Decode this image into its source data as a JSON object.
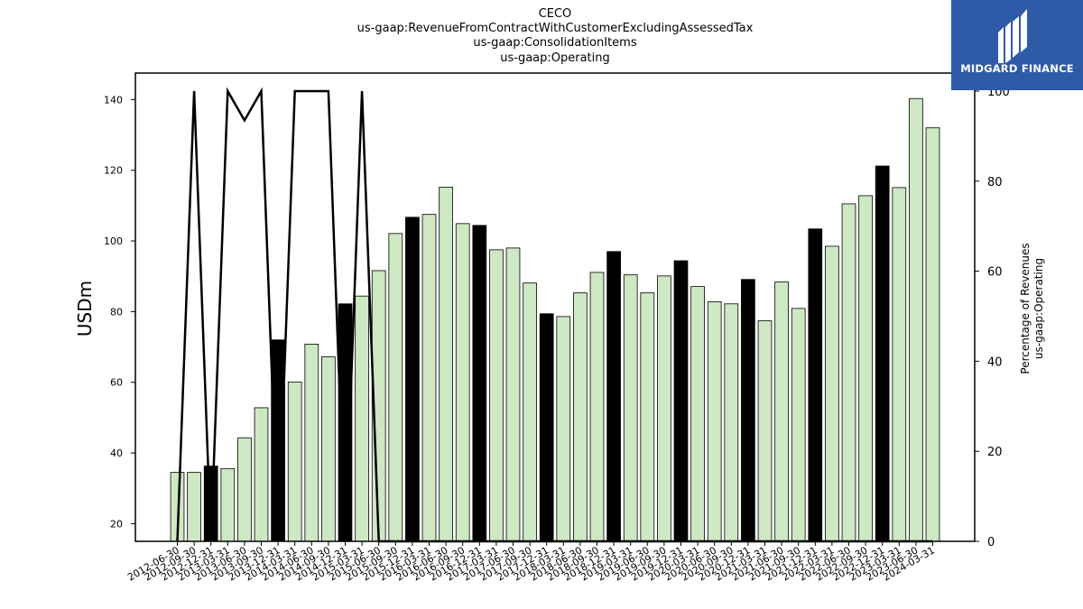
{
  "chart_data": {
    "type": "bar",
    "title_lines": [
      "CECO",
      "us-gaap:RevenueFromContractWithCustomerExcludingAssessedTax",
      "us-gaap:ConsolidationItems",
      "us-gaap:Operating"
    ],
    "ylabel": "USDm",
    "ylabel2_lines": [
      "Percentage of Revenues",
      "us-gaap:Operating"
    ],
    "ylim": [
      15,
      147.5
    ],
    "y2lim": [
      0,
      104
    ],
    "yticks": [
      20,
      40,
      60,
      80,
      100,
      120,
      140
    ],
    "y2ticks": [
      0,
      20,
      40,
      60,
      80,
      100
    ],
    "categories": [
      "2012-06-30",
      "2012-09-30",
      "2012-12-31",
      "2013-03-31",
      "2013-06-30",
      "2013-09-30",
      "2013-12-31",
      "2014-03-31",
      "2014-06-30",
      "2014-09-30",
      "2014-12-31",
      "2015-03-31",
      "2015-06-30",
      "2015-09-30",
      "2015-12-31",
      "2016-03-31",
      "2016-06-30",
      "2016-09-30",
      "2016-12-31",
      "2017-03-31",
      "2017-06-30",
      "2017-09-30",
      "2017-12-31",
      "2018-03-31",
      "2018-06-30",
      "2018-09-30",
      "2018-12-31",
      "2019-03-31",
      "2019-06-30",
      "2019-09-30",
      "2019-12-31",
      "2020-03-31",
      "2020-06-30",
      "2020-09-30",
      "2020-12-31",
      "2021-03-31",
      "2021-06-30",
      "2021-09-30",
      "2021-12-31",
      "2022-03-31",
      "2022-06-30",
      "2022-09-30",
      "2022-12-31",
      "2023-03-31",
      "2023-06-30",
      "2024-03-31"
    ],
    "series": [
      {
        "kind": "bar",
        "values": [
          34.5,
          34.5,
          36.3,
          35.6,
          44.3,
          52.8,
          72.0,
          60.1,
          70.8,
          67.2,
          82.2,
          84.4,
          91.6,
          102.1,
          106.7,
          107.5,
          115.2,
          104.9,
          104.4,
          97.5,
          98.0,
          88.1,
          79.4,
          78.6,
          85.3,
          91.1,
          97.0,
          90.4,
          85.3,
          90.1,
          94.4,
          87.1,
          82.8,
          82.2,
          89.1,
          77.4,
          88.4,
          80.9,
          103.4,
          98.5,
          110.5,
          112.8,
          121.2,
          115.1,
          140.3,
          132.0
        ],
        "highlight": [
          false,
          false,
          true,
          false,
          false,
          false,
          true,
          false,
          false,
          false,
          true,
          false,
          false,
          false,
          true,
          false,
          false,
          false,
          true,
          false,
          false,
          false,
          true,
          false,
          false,
          false,
          true,
          false,
          false,
          false,
          true,
          false,
          false,
          false,
          true,
          false,
          false,
          false,
          true,
          false,
          false,
          false,
          true,
          false,
          false,
          false
        ]
      },
      {
        "kind": "line",
        "axis": "right",
        "values": [
          0,
          100,
          0,
          100,
          93.5,
          100,
          0,
          100,
          100,
          100,
          0,
          100,
          0,
          0,
          0,
          0,
          0,
          0,
          0,
          0,
          0,
          0,
          0,
          0,
          0,
          0,
          0,
          0,
          0,
          0,
          0,
          0,
          0,
          0,
          0,
          0,
          0,
          0,
          0,
          0,
          0,
          0,
          0,
          0,
          0,
          0
        ]
      }
    ],
    "colors": {
      "bar": "#cde8c3",
      "highlight": "#000000",
      "line": "#000000"
    },
    "grid": false
  },
  "logo": {
    "text": "MIDGARD FINANCE",
    "bg": "#2f5aa8"
  }
}
